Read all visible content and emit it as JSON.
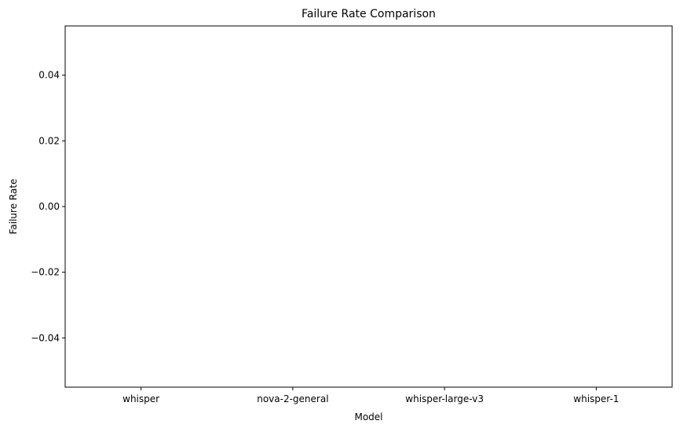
{
  "chart_data": {
    "type": "bar",
    "title": "Failure Rate Comparison",
    "xlabel": "Model",
    "ylabel": "Failure Rate",
    "categories": [
      "whisper",
      "nova-2-general",
      "whisper-large-v3",
      "whisper-1"
    ],
    "values": [
      0,
      0,
      0,
      0
    ],
    "ylim": [
      -0.055,
      0.055
    ],
    "yticks": [
      -0.04,
      -0.02,
      0.0,
      0.02,
      0.04
    ],
    "ytick_labels": [
      "−0.04",
      "−0.02",
      "0.00",
      "0.02",
      "0.04"
    ],
    "grid": false,
    "bar_color": "#1f77b4",
    "axis_color": "#000000"
  }
}
